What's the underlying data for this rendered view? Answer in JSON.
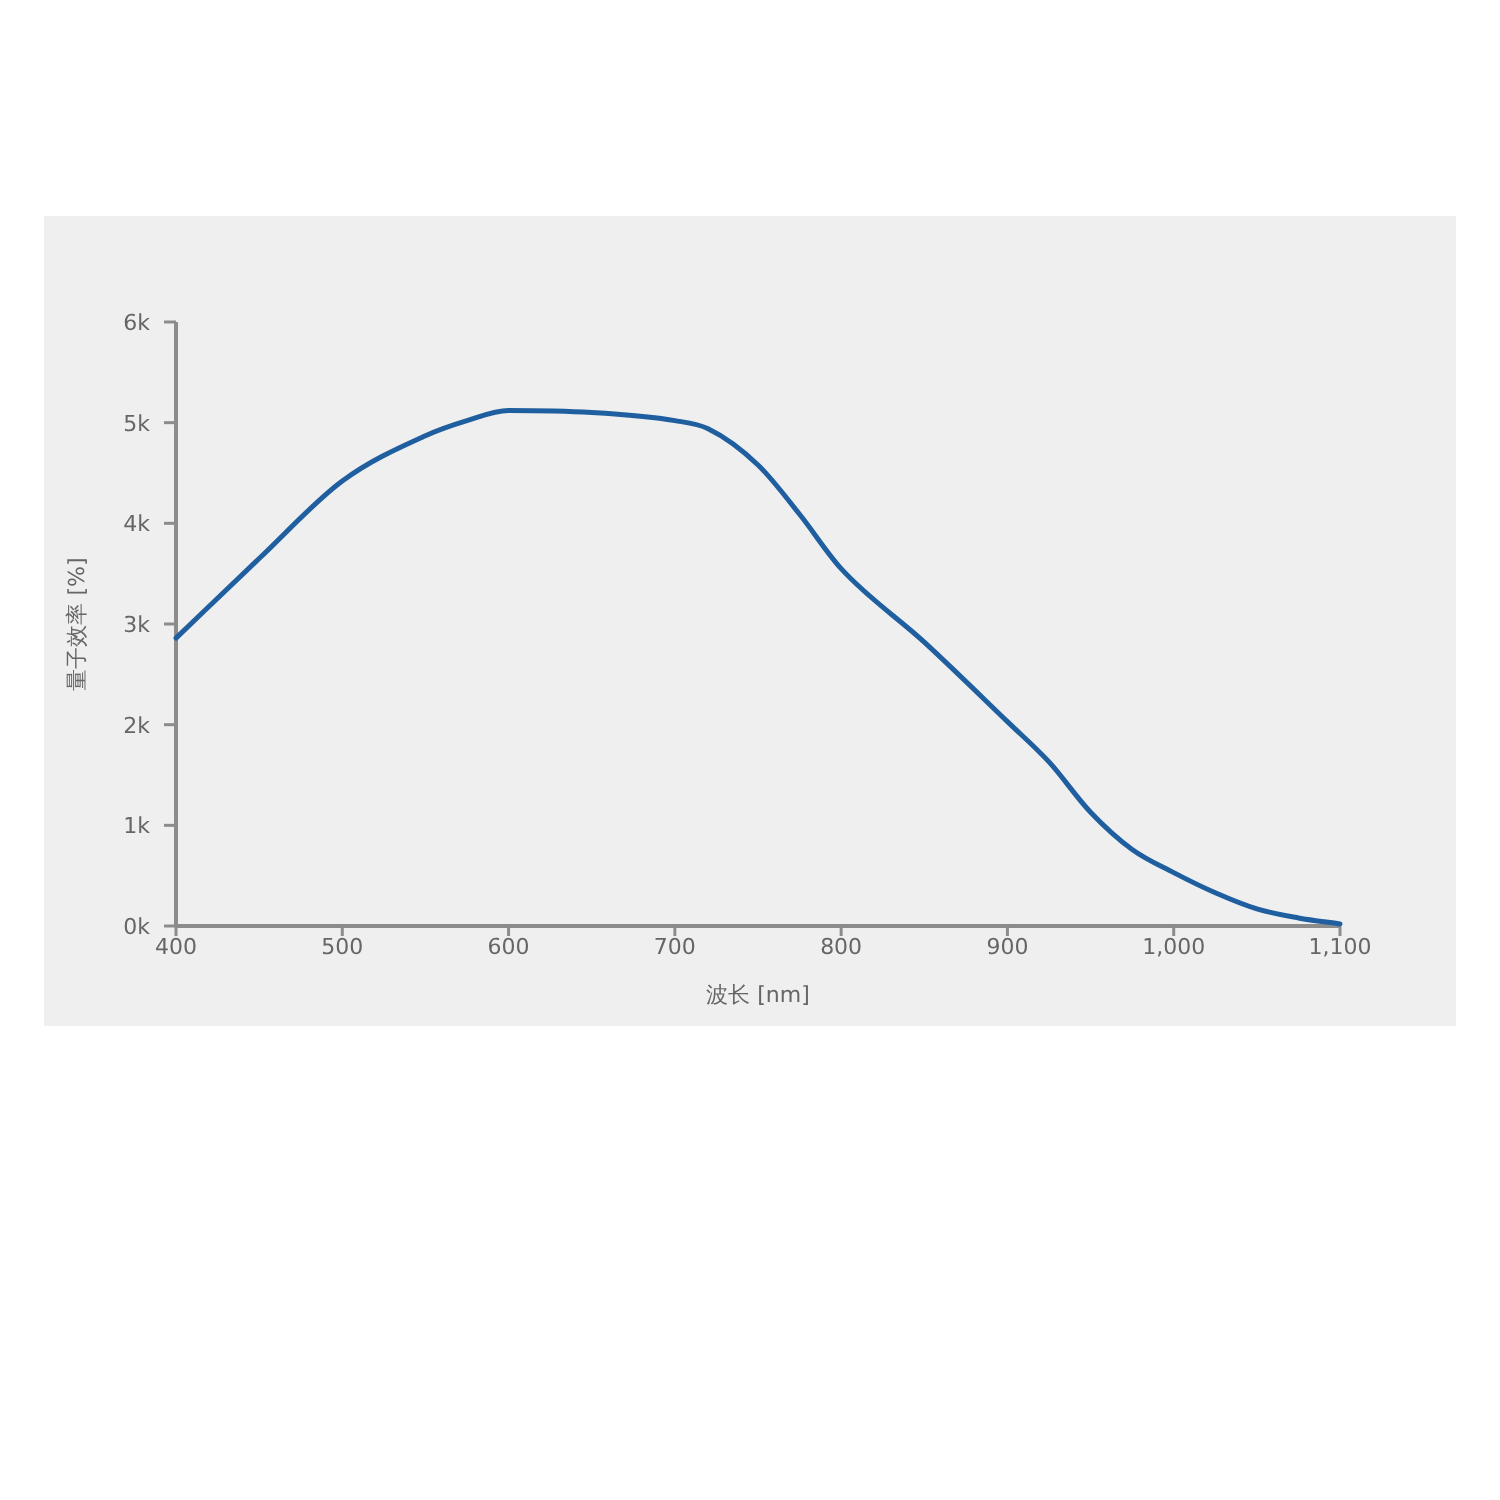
{
  "chart_data": {
    "type": "line",
    "xlabel": "波长 [nm]",
    "ylabel": "量子效率 [%]",
    "x": [
      400,
      450,
      500,
      550,
      575,
      600,
      650,
      700,
      720,
      750,
      775,
      800,
      850,
      900,
      925,
      950,
      975,
      1000,
      1025,
      1050,
      1075,
      1100
    ],
    "series": [
      {
        "color": "#1f5fa0",
        "values": [
          2860,
          3650,
          4420,
          4870,
          5020,
          5120,
          5100,
          5020,
          4940,
          4580,
          4090,
          3550,
          2820,
          2030,
          1630,
          1130,
          760,
          530,
          330,
          170,
          80,
          20
        ]
      }
    ],
    "xlim": [
      400,
      1100
    ],
    "xticks": [
      400,
      500,
      600,
      700,
      800,
      900,
      {
        "value": 1000,
        "label": "1,000"
      },
      {
        "value": 1100,
        "label": "1,100"
      }
    ],
    "ylim": [
      0,
      6000
    ],
    "yticks": [
      {
        "value": 0,
        "label": "0k"
      },
      {
        "value": 1000,
        "label": "1k"
      },
      {
        "value": 2000,
        "label": "2k"
      },
      {
        "value": 3000,
        "label": "3k"
      },
      {
        "value": 4000,
        "label": "4k"
      },
      {
        "value": 5000,
        "label": "5k"
      },
      {
        "value": 6000,
        "label": "6k"
      }
    ],
    "grid": false,
    "marker": "none",
    "line_style": "solid"
  }
}
